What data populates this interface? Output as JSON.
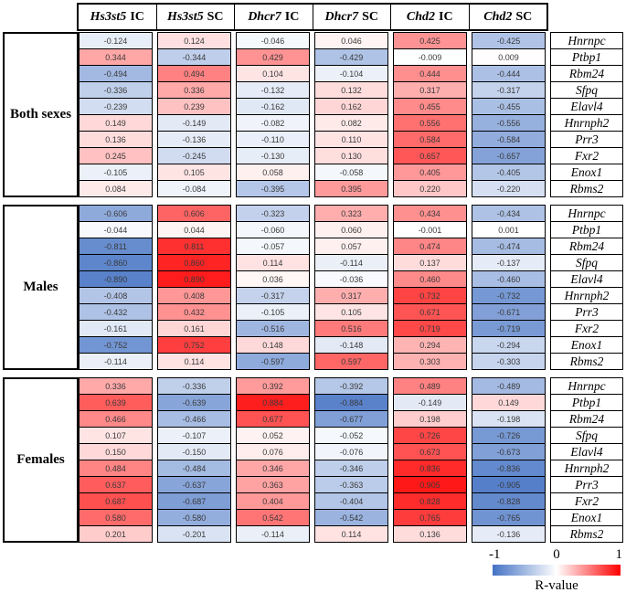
{
  "chart_data": {
    "type": "heatmap",
    "title": "",
    "value_format_decimals": 3,
    "columns": [
      {
        "gene": "Hs3st5",
        "suffix": "IC"
      },
      {
        "gene": "Hs3st5",
        "suffix": "SC"
      },
      {
        "gene": "Dhcr7",
        "suffix": "IC"
      },
      {
        "gene": "Dhcr7",
        "suffix": "SC"
      },
      {
        "gene": "Chd2",
        "suffix": "IC"
      },
      {
        "gene": "Chd2",
        "suffix": "SC"
      }
    ],
    "groups": [
      {
        "label": "Both sexes",
        "rows": [
          {
            "gene": "Hnrnpc",
            "values": [
              -0.124,
              0.124,
              -0.046,
              0.046,
              0.425,
              -0.425
            ]
          },
          {
            "gene": "Ptbp1",
            "values": [
              0.344,
              -0.344,
              0.429,
              -0.429,
              -0.009,
              0.009
            ]
          },
          {
            "gene": "Rbm24",
            "values": [
              -0.494,
              0.494,
              0.104,
              -0.104,
              0.444,
              -0.444
            ]
          },
          {
            "gene": "Sfpq",
            "values": [
              -0.336,
              0.336,
              -0.132,
              0.132,
              0.317,
              -0.317
            ]
          },
          {
            "gene": "Elavl4",
            "values": [
              -0.239,
              0.239,
              -0.162,
              0.162,
              0.455,
              -0.455
            ]
          },
          {
            "gene": "Hnrnph2",
            "values": [
              0.149,
              -0.149,
              -0.082,
              0.082,
              0.556,
              -0.556
            ]
          },
          {
            "gene": "Prr3",
            "values": [
              0.136,
              -0.136,
              -0.11,
              0.11,
              0.584,
              -0.584
            ]
          },
          {
            "gene": "Fxr2",
            "values": [
              0.245,
              -0.245,
              -0.13,
              0.13,
              0.657,
              -0.657
            ]
          },
          {
            "gene": "Enox1",
            "values": [
              -0.105,
              0.105,
              0.058,
              -0.058,
              0.405,
              -0.405
            ]
          },
          {
            "gene": "Rbms2",
            "values": [
              0.084,
              -0.084,
              -0.395,
              0.395,
              0.22,
              -0.22
            ]
          }
        ]
      },
      {
        "label": "Males",
        "rows": [
          {
            "gene": "Hnrnpc",
            "values": [
              -0.606,
              0.606,
              -0.323,
              0.323,
              0.434,
              -0.434
            ]
          },
          {
            "gene": "Ptbp1",
            "values": [
              -0.044,
              0.044,
              -0.06,
              0.06,
              -0.001,
              0.001
            ]
          },
          {
            "gene": "Rbm24",
            "values": [
              -0.811,
              0.811,
              -0.057,
              0.057,
              0.474,
              -0.474
            ]
          },
          {
            "gene": "Sfpq",
            "values": [
              -0.86,
              0.86,
              0.114,
              -0.114,
              0.137,
              -0.137
            ]
          },
          {
            "gene": "Elavl4",
            "values": [
              -0.89,
              0.89,
              0.036,
              -0.036,
              0.46,
              -0.46
            ]
          },
          {
            "gene": "Hnrnph2",
            "values": [
              -0.408,
              0.408,
              -0.317,
              0.317,
              0.732,
              -0.732
            ]
          },
          {
            "gene": "Prr3",
            "values": [
              -0.432,
              0.432,
              -0.105,
              0.105,
              0.671,
              -0.671
            ]
          },
          {
            "gene": "Fxr2",
            "values": [
              -0.161,
              0.161,
              -0.516,
              0.516,
              0.719,
              -0.719
            ]
          },
          {
            "gene": "Enox1",
            "values": [
              -0.752,
              0.752,
              0.148,
              -0.148,
              0.294,
              -0.294
            ]
          },
          {
            "gene": "Rbms2",
            "values": [
              -0.114,
              0.114,
              -0.597,
              0.597,
              0.303,
              -0.303
            ]
          }
        ]
      },
      {
        "label": "Females",
        "rows": [
          {
            "gene": "Hnrnpc",
            "values": [
              0.336,
              -0.336,
              0.392,
              -0.392,
              0.489,
              -0.489
            ]
          },
          {
            "gene": "Ptbp1",
            "values": [
              0.639,
              -0.639,
              0.884,
              -0.884,
              -0.149,
              0.149
            ]
          },
          {
            "gene": "Rbm24",
            "values": [
              0.466,
              -0.466,
              0.677,
              -0.677,
              0.198,
              -0.198
            ]
          },
          {
            "gene": "Sfpq",
            "values": [
              0.107,
              -0.107,
              0.052,
              -0.052,
              0.726,
              -0.726
            ]
          },
          {
            "gene": "Elavl4",
            "values": [
              0.15,
              -0.15,
              0.076,
              -0.076,
              0.673,
              -0.673
            ]
          },
          {
            "gene": "Hnrnph2",
            "values": [
              0.484,
              -0.484,
              0.346,
              -0.346,
              0.836,
              -0.836
            ]
          },
          {
            "gene": "Prr3",
            "values": [
              0.637,
              -0.637,
              0.363,
              -0.363,
              0.905,
              -0.905
            ]
          },
          {
            "gene": "Fxr2",
            "values": [
              0.687,
              -0.687,
              0.404,
              -0.404,
              0.828,
              -0.828
            ]
          },
          {
            "gene": "Enox1",
            "values": [
              0.58,
              -0.58,
              0.542,
              -0.542,
              0.765,
              -0.765
            ]
          },
          {
            "gene": "Rbms2",
            "values": [
              0.201,
              -0.201,
              -0.114,
              0.114,
              0.136,
              -0.136
            ]
          }
        ]
      }
    ],
    "colorbar": {
      "min_label": "-1",
      "mid_label": "0",
      "max_label": "1",
      "title": "R-value",
      "negative_color": "#4472C4",
      "zero_color": "#FFFFFF",
      "positive_color": "#FF0000",
      "range": [
        -1,
        1
      ],
      "legend_position": "bottom-right"
    }
  }
}
